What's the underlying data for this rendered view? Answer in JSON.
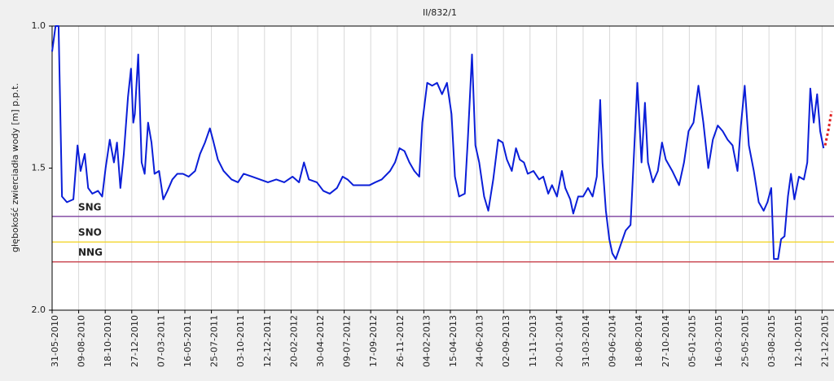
{
  "chart_data": {
    "type": "line",
    "title": "II/832/1",
    "y_label": "głębokość zwierciadła wody [m] p.p.t.",
    "y_inverted": true,
    "grid": true,
    "ylim": [
      1,
      2
    ],
    "yticks": [
      {
        "value": 1,
        "label": "1.0"
      },
      1.5,
      {
        "value": 2,
        "label": "2.0"
      }
    ],
    "xlim": [
      "31-05-2010",
      "15-01-2016"
    ],
    "xticks": [
      "31-05-2010",
      "09-08-2010",
      "18-10-2010",
      "27-12-2010",
      "07-03-2011",
      "16-05-2011",
      "25-07-2011",
      "03-10-2011",
      "12-12-2011",
      "20-02-2012",
      "30-04-2012",
      "09-07-2012",
      "17-09-2012",
      "26-11-2012",
      "04-02-2013",
      "15-04-2013",
      "24-06-2013",
      "02-09-2013",
      "11-11-2013",
      "20-01-2014",
      "31-03-2014",
      "09-06-2014",
      "18-08-2014",
      "27-10-2014",
      "05-01-2015",
      "16-03-2015",
      "25-05-2015",
      "03-08-2015",
      "12-10-2015",
      "21-12-2015"
    ],
    "reference_lines": [
      {
        "label": "SNG",
        "value": 1.67,
        "color": "#7b3f9e",
        "label_color": "#5a2a7a"
      },
      {
        "label": "SNO",
        "value": 1.76,
        "color": "#f2d21a",
        "label_color": "#e8c400"
      },
      {
        "label": "NNG",
        "value": 1.83,
        "color": "#c8404a",
        "label_color": "#a03018"
      }
    ],
    "series": [
      {
        "color": "#0a1ed8",
        "dash": false,
        "x": [
          "31-05-2010",
          "09-06-2010",
          "17-06-2010",
          "26-06-2010",
          "09-07-2010",
          "26-07-2010",
          "06-08-2010",
          "14-08-2010",
          "25-08-2010",
          "03-09-2010",
          "14-09-2010",
          "29-09-2010",
          "10-10-2010",
          "19-10-2010",
          "30-10-2010",
          "10-11-2010",
          "18-11-2010",
          "27-11-2010",
          "06-12-2010",
          "17-12-2010",
          "25-12-2010",
          "31-12-2010",
          "04-01-2011",
          "13-01-2011",
          "22-01-2011",
          "30-01-2011",
          "08-02-2011",
          "17-02-2011",
          "25-02-2011",
          "09-03-2011",
          "20-03-2011",
          "31-03-2011",
          "13-04-2011",
          "26-04-2011",
          "11-05-2011",
          "26-05-2011",
          "12-06-2011",
          "25-06-2011",
          "08-07-2011",
          "21-07-2011",
          "29-07-2011",
          "11-08-2011",
          "26-08-2011",
          "16-09-2011",
          "03-10-2011",
          "18-10-2011",
          "09-11-2011",
          "30-11-2011",
          "21-12-2011",
          "12-01-2012",
          "02-02-2012",
          "24-02-2012",
          "12-03-2012",
          "25-03-2012",
          "07-04-2012",
          "28-04-2012",
          "15-05-2012",
          "01-06-2012",
          "20-06-2012",
          "05-07-2012",
          "18-07-2012",
          "02-08-2012",
          "23-08-2012",
          "14-09-2012",
          "29-09-2012",
          "16-10-2012",
          "07-11-2012",
          "20-11-2012",
          "02-12-2012",
          "15-12-2012",
          "28-12-2012",
          "10-01-2013",
          "23-01-2013",
          "31-01-2013",
          "13-02-2013",
          "26-02-2013",
          "11-03-2013",
          "24-03-2013",
          "06-04-2013",
          "18-04-2013",
          "27-04-2013",
          "08-05-2013",
          "23-05-2013",
          "31-05-2013",
          "11-06-2013",
          "20-06-2013",
          "30-06-2013",
          "13-07-2013",
          "24-07-2013",
          "06-08-2013",
          "19-08-2013",
          "31-08-2013",
          "11-09-2013",
          "24-09-2013",
          "05-10-2013",
          "15-10-2013",
          "26-10-2013",
          "05-11-2013",
          "20-11-2013",
          "05-12-2013",
          "16-12-2013",
          "29-12-2013",
          "08-01-2014",
          "21-01-2014",
          "03-02-2014",
          "12-02-2014",
          "25-02-2014",
          "05-03-2014",
          "18-03-2014",
          "31-03-2014",
          "13-04-2014",
          "25-04-2014",
          "06-05-2014",
          "15-05-2014",
          "21-05-2014",
          "30-05-2014",
          "08-06-2014",
          "16-06-2014",
          "25-06-2014",
          "08-07-2014",
          "21-07-2014",
          "03-08-2014",
          "11-08-2014",
          "21-08-2014",
          "01-09-2014",
          "10-09-2014",
          "18-09-2014",
          "01-10-2014",
          "14-10-2014",
          "25-10-2014",
          "04-11-2014",
          "21-11-2014",
          "09-12-2014",
          "22-12-2014",
          "03-01-2015",
          "16-01-2015",
          "29-01-2015",
          "11-02-2015",
          "24-02-2015",
          "08-03-2015",
          "21-03-2015",
          "03-04-2015",
          "16-04-2015",
          "29-04-2015",
          "12-05-2015",
          "21-05-2015",
          "31-05-2015",
          "11-06-2015",
          "24-06-2015",
          "07-07-2015",
          "20-07-2015",
          "30-07-2015",
          "09-08-2015",
          "16-08-2015",
          "27-08-2015",
          "04-09-2015",
          "13-09-2015",
          "22-09-2015",
          "30-09-2015",
          "09-10-2015",
          "21-10-2015",
          "03-11-2015",
          "12-11-2015",
          "20-11-2015",
          "29-11-2015",
          "08-12-2015",
          "16-12-2015",
          "25-12-2015"
        ],
        "values": [
          1.09,
          1.0,
          1.0,
          1.6,
          1.62,
          1.61,
          1.42,
          1.51,
          1.45,
          1.57,
          1.59,
          1.58,
          1.6,
          1.5,
          1.4,
          1.48,
          1.41,
          1.57,
          1.45,
          1.25,
          1.15,
          1.34,
          1.31,
          1.1,
          1.48,
          1.52,
          1.34,
          1.41,
          1.52,
          1.51,
          1.61,
          1.58,
          1.54,
          1.52,
          1.52,
          1.53,
          1.51,
          1.45,
          1.41,
          1.36,
          1.4,
          1.47,
          1.51,
          1.54,
          1.55,
          1.52,
          1.53,
          1.54,
          1.55,
          1.54,
          1.55,
          1.53,
          1.55,
          1.48,
          1.54,
          1.55,
          1.58,
          1.59,
          1.57,
          1.53,
          1.54,
          1.56,
          1.56,
          1.56,
          1.55,
          1.54,
          1.51,
          1.48,
          1.43,
          1.44,
          1.48,
          1.51,
          1.53,
          1.34,
          1.2,
          1.21,
          1.2,
          1.24,
          1.2,
          1.31,
          1.53,
          1.6,
          1.59,
          1.4,
          1.1,
          1.42,
          1.48,
          1.6,
          1.65,
          1.54,
          1.4,
          1.41,
          1.47,
          1.51,
          1.43,
          1.47,
          1.48,
          1.52,
          1.51,
          1.54,
          1.53,
          1.59,
          1.56,
          1.6,
          1.51,
          1.57,
          1.61,
          1.66,
          1.6,
          1.6,
          1.57,
          1.6,
          1.53,
          1.26,
          1.48,
          1.65,
          1.75,
          1.8,
          1.82,
          1.77,
          1.72,
          1.7,
          1.48,
          1.2,
          1.48,
          1.27,
          1.48,
          1.55,
          1.51,
          1.41,
          1.47,
          1.51,
          1.56,
          1.48,
          1.37,
          1.34,
          1.21,
          1.34,
          1.5,
          1.4,
          1.35,
          1.37,
          1.4,
          1.42,
          1.51,
          1.35,
          1.21,
          1.42,
          1.51,
          1.62,
          1.65,
          1.62,
          1.57,
          1.82,
          1.82,
          1.75,
          1.74,
          1.6,
          1.52,
          1.61,
          1.53,
          1.54,
          1.48,
          1.22,
          1.34,
          1.24,
          1.37,
          1.43
        ]
      },
      {
        "color": "#e02020",
        "dash": true,
        "x": [
          "29-12-2015",
          "06-01-2016",
          "15-01-2016"
        ],
        "values": [
          1.42,
          1.37,
          1.3
        ]
      }
    ]
  }
}
